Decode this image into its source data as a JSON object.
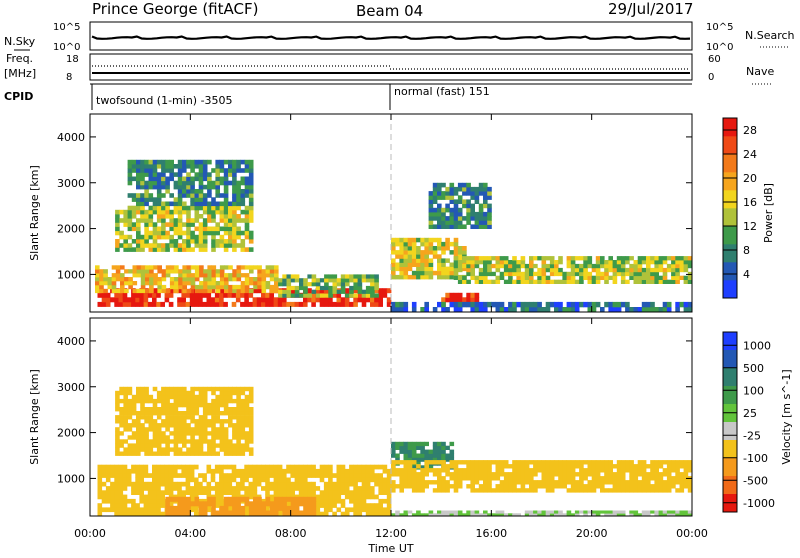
{
  "header": {
    "station": "Prince George (fitACF)",
    "beam": "Beam 04",
    "date": "29/Jul/2017"
  },
  "top_strips": {
    "nsky_label": "N.Sky",
    "nsky_ticks": [
      "10^5",
      "10^0"
    ],
    "nsearch_label": "N.Search",
    "nsearch_ticks": [
      "10^5",
      "10^0"
    ],
    "freq_label": "Freq.",
    "freq_unit": "[MHz]",
    "freq_ticks": [
      "18",
      "8"
    ],
    "nave_label": "Nave",
    "nave_ticks": [
      "60",
      "0"
    ],
    "cpid_label": "CPID",
    "cpid_segments": [
      {
        "label": "twofsound (1-min) -3505",
        "start": "00:00"
      },
      {
        "label": "normal (fast) 151",
        "start": "12:00"
      }
    ]
  },
  "colors": {
    "power": [
      "#1f3fff",
      "#2358b4",
      "#2f7f6f",
      "#3e9a4a",
      "#b0c23a",
      "#f2d51e",
      "#f6a51d",
      "#f37a1a",
      "#ef4a16",
      "#e6180f"
    ],
    "velocity": [
      "#1f3fff",
      "#2358b4",
      "#2f7f6f",
      "#3e9a4a",
      "#62c43b",
      "#c8c8c8",
      "#f3c21b",
      "#f59a1c",
      "#f16a18",
      "#e6180f"
    ]
  },
  "chart_data": [
    {
      "type": "heatmap",
      "name": "power",
      "xlabel": "",
      "ylabel": "Slant Range [km]",
      "yticks": [
        "1000",
        "2000",
        "3000",
        "4000"
      ],
      "ylim": [
        180,
        4500
      ],
      "xlim": [
        "00:00",
        "24:00"
      ],
      "colorbar_label": "Power [dB]",
      "colorbar_ticks": [
        "4",
        "8",
        "12",
        "16",
        "20",
        "24",
        "28"
      ],
      "colorbar_range": [
        0,
        30
      ],
      "regions": [
        {
          "t": [
            0.3,
            12.0
          ],
          "r": [
            300,
            700
          ],
          "value": 28
        },
        {
          "t": [
            0.2,
            7.5
          ],
          "r": [
            600,
            1200
          ],
          "value": 18
        },
        {
          "t": [
            7.5,
            11.5
          ],
          "r": [
            500,
            1000
          ],
          "value": 12
        },
        {
          "t": [
            1.0,
            6.5
          ],
          "r": [
            1500,
            2500
          ],
          "value": 14
        },
        {
          "t": [
            1.5,
            6.5
          ],
          "r": [
            2500,
            3500
          ],
          "value": 8
        },
        {
          "t": [
            12.0,
            15.0
          ],
          "r": [
            900,
            1800
          ],
          "value": 16
        },
        {
          "t": [
            14.0,
            15.5
          ],
          "r": [
            300,
            600
          ],
          "value": 26
        },
        {
          "t": [
            14.5,
            24.0
          ],
          "r": [
            800,
            1400
          ],
          "value": 14
        },
        {
          "t": [
            12.0,
            24.0
          ],
          "r": [
            180,
            400
          ],
          "value": 6
        },
        {
          "t": [
            13.5,
            16.0
          ],
          "r": [
            2000,
            3000
          ],
          "value": 8
        }
      ]
    },
    {
      "type": "heatmap",
      "name": "velocity",
      "xlabel": "Time UT",
      "ylabel": "Slant Range [km]",
      "yticks": [
        "1000",
        "2000",
        "3000",
        "4000"
      ],
      "ylim": [
        180,
        4500
      ],
      "xlim": [
        "00:00",
        "24:00"
      ],
      "xticks": [
        "00:00",
        "04:00",
        "08:00",
        "12:00",
        "16:00",
        "20:00",
        "00:00"
      ],
      "colorbar_label": "Velocity [m s^-1]",
      "colorbar_ticks": [
        "1000",
        "500",
        "100",
        "25",
        "-25",
        "-100",
        "-500",
        "-1000"
      ],
      "regions": [
        {
          "t": [
            0.3,
            12.0
          ],
          "r": [
            180,
            1300
          ],
          "value": 0
        },
        {
          "t": [
            3.0,
            9.0
          ],
          "r": [
            200,
            600
          ],
          "value": -80
        },
        {
          "t": [
            1.0,
            6.5
          ],
          "r": [
            1500,
            3000
          ],
          "value": 0
        },
        {
          "t": [
            12.0,
            14.5
          ],
          "r": [
            1200,
            1800
          ],
          "value": 300
        },
        {
          "t": [
            12.0,
            24.0
          ],
          "r": [
            700,
            1400
          ],
          "value": 0
        },
        {
          "t": [
            12.0,
            24.0
          ],
          "r": [
            180,
            300
          ],
          "value": 50
        }
      ]
    }
  ]
}
